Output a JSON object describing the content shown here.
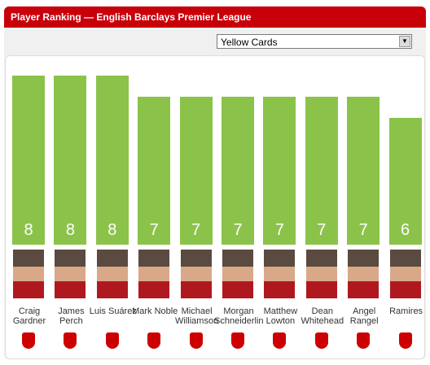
{
  "header": {
    "title": "Player Ranking — English Barclays Premier League",
    "select": "Yellow Cards"
  },
  "chart_data": {
    "type": "bar",
    "categories": [
      "Craig Gardner",
      "James Perch",
      "Luis Suárez",
      "Mark Noble",
      "Michael Williamson",
      "Morgan Schneiderlin",
      "Matthew Lowton",
      "Dean Whitehead",
      "Angel Rangel",
      "Ramires"
    ],
    "values": [
      8,
      8,
      8,
      7,
      7,
      7,
      7,
      7,
      7,
      6
    ],
    "color": "#8bc34a"
  }
}
